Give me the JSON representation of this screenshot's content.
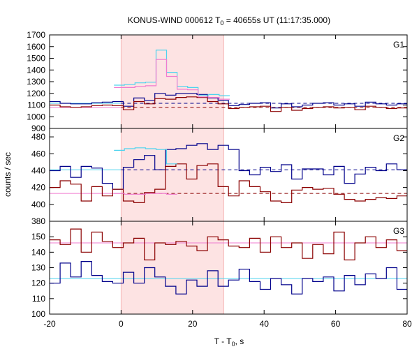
{
  "chart_data": {
    "type": "line",
    "title_prefix": "KONUS-WIND 000612 T",
    "title_sub": "0",
    "title_suffix": " = 40655s UT (11:17:35.000)",
    "xlabel_prefix": "T - T",
    "xlabel_sub": "0",
    "xlabel_suffix": ", s",
    "ylabel": "counts / sec",
    "xlim": [
      -20,
      80
    ],
    "xticks": [
      -20,
      0,
      20,
      40,
      60,
      80
    ],
    "interval_highlight": [
      0,
      28.7
    ],
    "colors": {
      "red": "#8b0000",
      "blue": "#00008b",
      "cyan": "#4dd3ee",
      "pink": "#f07bd0",
      "highlight": "#fde3e3"
    },
    "panels": [
      {
        "label": "G1",
        "ylim": [
          900,
          1700
        ],
        "yticks": [
          900,
          1000,
          1100,
          1200,
          1300,
          1400,
          1500,
          1600,
          1700
        ],
        "series": [
          {
            "color": "blue",
            "step": 2.944,
            "x0": -20,
            "values": [
              1130,
              1115,
              1110,
              1110,
              1120,
              1125,
              1130,
              1090,
              1160,
              1140,
              1200,
              1185,
              1200,
              1200,
              1190,
              1160,
              1140,
              1095,
              1105,
              1115,
              1120,
              1075,
              1110,
              1085,
              1100,
              1115,
              1120,
              1100,
              1110,
              1090,
              1125,
              1110,
              1100,
              1110,
              1085
            ]
          },
          {
            "color": "red",
            "step": 2.944,
            "x0": -20,
            "values": [
              1100,
              1085,
              1080,
              1085,
              1095,
              1100,
              1095,
              1060,
              1130,
              1110,
              1155,
              1150,
              1165,
              1170,
              1165,
              1130,
              1110,
              1070,
              1080,
              1085,
              1090,
              1045,
              1080,
              1055,
              1070,
              1080,
              1085,
              1075,
              1080,
              1060,
              1090,
              1080,
              1070,
              1075,
              1050
            ]
          },
          {
            "color": "cyan",
            "step": 2.944,
            "x0": -2,
            "values": [
              1270,
              1275,
              1290,
              1295,
              1570,
              1380,
              1260,
              1250,
              1185,
              1190,
              1180
            ]
          },
          {
            "color": "pink",
            "step": 2.944,
            "x0": -2,
            "values": [
              1250,
              1250,
              1260,
              1265,
              1490,
              1345,
              1235,
              1230,
              1170,
              1165,
              1150
            ]
          }
        ],
        "baselines": [
          {
            "color": "blue",
            "value": 1115
          },
          {
            "color": "red",
            "value": 1080
          }
        ]
      },
      {
        "label": "G2",
        "ylim": [
          380,
          490
        ],
        "yticks": [
          380,
          400,
          420,
          440,
          460,
          480
        ],
        "series": [
          {
            "color": "blue",
            "step": 2.944,
            "x0": -20,
            "values": [
              440,
              445,
              432,
              445,
              443,
              425,
              418,
              444,
              453,
              458,
              441,
              465,
              466,
              470,
              472,
              465,
              470,
              465,
              440,
              435,
              444,
              439,
              447,
              430,
              442,
              442,
              435,
              445,
              425,
              436,
              444,
              440,
              448,
              441,
              444,
              433,
              453,
              443,
              444,
              448,
              456,
              442,
              435,
              446,
              445,
              450,
              425
            ]
          },
          {
            "color": "red",
            "step": 2.944,
            "x0": -20,
            "values": [
              420,
              428,
              424,
              404,
              421,
              410,
              418,
              404,
              402,
              414,
              418,
              445,
              448,
              430,
              446,
              448,
              421,
              410,
              428,
              421,
              415,
              404,
              402,
              417,
              420,
              418,
              419,
              412,
              406,
              404,
              406,
              408,
              407,
              410,
              406,
              403,
              409,
              405,
              408,
              420,
              418,
              402,
              410,
              414,
              418,
              407,
              405
            ]
          },
          {
            "color": "cyan",
            "step": 2.944,
            "x0": -2,
            "values": [
              464,
              466,
              467,
              466,
              465,
              448
            ]
          },
          {
            "color": "pink",
            "step": 2.944,
            "x0": -2,
            "values": [
              413,
              412,
              412,
              413,
              413,
              412
            ]
          }
        ],
        "baselines": [
          {
            "color": "blue",
            "value": 441
          },
          {
            "color": "red",
            "value": 413
          }
        ]
      },
      {
        "label": "G3",
        "ylim": [
          100,
          160
        ],
        "yticks": [
          100,
          110,
          120,
          130,
          140,
          150
        ],
        "series": [
          {
            "color": "red",
            "step": 2.944,
            "x0": -20,
            "values": [
              148,
              145,
              155,
              140,
              153,
              147,
              143,
              146,
              149,
              135,
              146,
              145,
              147,
              144,
              141,
              150,
              148,
              144,
              143,
              149,
              140,
              150,
              143,
              146,
              136,
              145,
              139,
              153,
              135,
              146,
              150,
              143,
              148,
              141,
              147,
              136,
              144,
              140,
              138
            ]
          },
          {
            "color": "blue",
            "step": 2.944,
            "x0": -20,
            "values": [
              120,
              133,
              124,
              134,
              125,
              121,
              120,
              127,
              120,
              130,
              124,
              118,
              113,
              122,
              118,
              128,
              118,
              122,
              129,
              121,
              116,
              123,
              119,
              113,
              123,
              121,
              124,
              115,
              125,
              119,
              126,
              123,
              130,
              116,
              122,
              133,
              118,
              125,
              128,
              117,
              120
            ]
          }
        ],
        "baselines": [
          {
            "color": "pink",
            "value": 146
          },
          {
            "color": "cyan",
            "value": 123
          }
        ]
      }
    ]
  }
}
